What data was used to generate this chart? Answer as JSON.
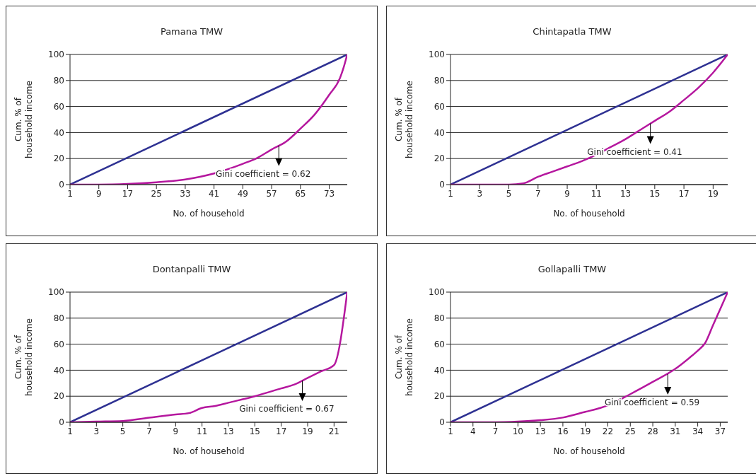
{
  "chart_data": [
    {
      "type": "line",
      "title": "Pamana TMW",
      "xlabel": "No. of household",
      "ylabel": "Cum. % of\nhousehold income",
      "xlim": [
        1,
        78
      ],
      "xticks": [
        1,
        9,
        17,
        25,
        33,
        41,
        49,
        57,
        65,
        73
      ],
      "ylim": [
        0,
        100
      ],
      "yticks": [
        0,
        20,
        40,
        60,
        80,
        100
      ],
      "grid": "y",
      "annotations": [
        {
          "text": "Gini coefficient = 0.62",
          "x": 59,
          "y": 30
        }
      ],
      "series": [
        {
          "color": "#2e3192",
          "x": [
            1,
            78
          ],
          "values": [
            0,
            100
          ]
        },
        {
          "color": "#b5179e",
          "x": [
            1,
            9,
            17,
            25,
            33,
            41,
            49,
            53,
            57,
            61,
            65,
            69,
            73,
            76,
            77,
            78
          ],
          "values": [
            0,
            0,
            0.5,
            1.8,
            4,
            8.6,
            16,
            20.5,
            27,
            33,
            43,
            54,
            69,
            82,
            90,
            100
          ]
        }
      ]
    },
    {
      "type": "line",
      "title": "Chintapatla TMW",
      "xlabel": "No. of household",
      "ylabel": "Cum. % of\nhousehold income",
      "xlim": [
        1,
        20
      ],
      "xticks": [
        1,
        3,
        5,
        7,
        9,
        11,
        13,
        15,
        17,
        19
      ],
      "ylim": [
        0,
        100
      ],
      "yticks": [
        0,
        20,
        40,
        60,
        80,
        100
      ],
      "grid": "y",
      "annotations": [
        {
          "text": "Gini coefficient = 0.41",
          "x": 14.7,
          "y": 47
        }
      ],
      "series": [
        {
          "color": "#2e3192",
          "x": [
            1,
            20
          ],
          "values": [
            0,
            100
          ]
        },
        {
          "color": "#b5179e",
          "x": [
            1,
            5,
            6,
            7,
            8,
            9,
            10,
            11,
            12,
            13,
            14,
            15,
            16,
            17,
            18,
            19,
            20
          ],
          "values": [
            0,
            0,
            1,
            6,
            10,
            14,
            18,
            23,
            29,
            35,
            42,
            49,
            56,
            65,
            74.5,
            86,
            100
          ]
        }
      ]
    },
    {
      "type": "line",
      "title": "Dontanpalli TMW",
      "xlabel": "No. of household",
      "ylabel": "Cum. % of\nhousehold income",
      "xlim": [
        1,
        22
      ],
      "xticks": [
        1,
        3,
        5,
        7,
        9,
        11,
        13,
        15,
        17,
        19,
        21
      ],
      "ylim": [
        0,
        100
      ],
      "yticks": [
        0,
        20,
        40,
        60,
        80,
        100
      ],
      "grid": "y",
      "annotations": [
        {
          "text": "Gini coefficient = 0.67",
          "x": 18.6,
          "y": 32
        }
      ],
      "series": [
        {
          "color": "#2e3192",
          "x": [
            1,
            22
          ],
          "values": [
            0,
            100
          ]
        },
        {
          "color": "#b5179e",
          "x": [
            1,
            3,
            5,
            7,
            9,
            10,
            11,
            12,
            13,
            15,
            17,
            18,
            19,
            20,
            21,
            22
          ],
          "values": [
            0,
            0.5,
            1,
            3.5,
            6,
            7,
            11,
            12.5,
            15,
            20,
            26,
            29,
            34,
            39,
            44,
            100
          ]
        }
      ]
    },
    {
      "type": "line",
      "title": "Gollapalli TMW",
      "xlabel": "No. of household",
      "ylabel": "Cum. % of\nhousehold income",
      "xlim": [
        1,
        38
      ],
      "xticks": [
        1,
        4,
        7,
        10,
        13,
        16,
        19,
        22,
        25,
        28,
        31,
        34,
        37
      ],
      "ylim": [
        0,
        100
      ],
      "yticks": [
        0,
        20,
        40,
        60,
        80,
        100
      ],
      "grid": "y",
      "annotations": [
        {
          "text": "Gini coefficient = 0.59",
          "x": 30,
          "y": 37
        }
      ],
      "series": [
        {
          "color": "#2e3192",
          "x": [
            1,
            38
          ],
          "values": [
            0,
            100
          ]
        },
        {
          "color": "#b5179e",
          "x": [
            1,
            7,
            10,
            13,
            16,
            19,
            21,
            22,
            25,
            28,
            31,
            33,
            34,
            35,
            36,
            37,
            38
          ],
          "values": [
            0,
            0,
            0.5,
            1.6,
            3.6,
            8,
            11,
            13,
            21.6,
            31,
            41,
            50,
            55,
            61,
            74,
            87,
            100
          ]
        }
      ]
    }
  ]
}
